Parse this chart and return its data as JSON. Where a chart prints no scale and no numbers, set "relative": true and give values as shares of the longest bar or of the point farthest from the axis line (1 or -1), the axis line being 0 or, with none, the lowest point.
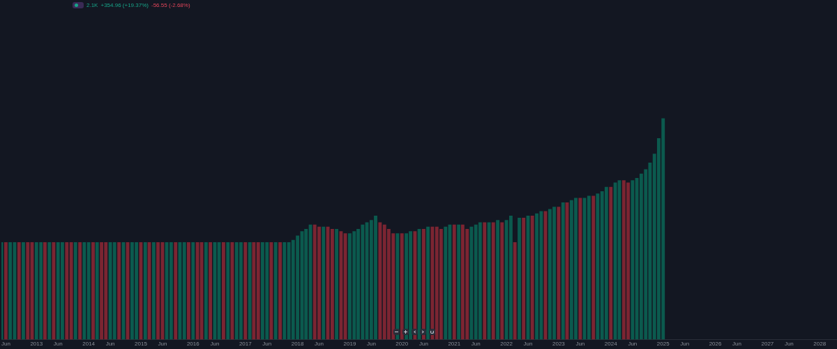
{
  "chart_data": {
    "type": "bar",
    "relative": true,
    "legend": false,
    "tick_labels": "x",
    "annotations": [
      "2.1K",
      "+354.96 (+19.37%)",
      "-56.55 (-2.68%)"
    ],
    "xlim": [
      "2012-05",
      "2028-05"
    ],
    "xticks": [
      {
        "value": "2012-06",
        "label": "Jun"
      },
      "2013",
      {
        "value": "2013-06",
        "label": "Jun"
      },
      "2014",
      {
        "value": "2014-06",
        "label": "Jun"
      },
      "2015",
      {
        "value": "2015-06",
        "label": "Jun"
      },
      "2016",
      {
        "value": "2016-06",
        "label": "Jun"
      },
      "2017",
      {
        "value": "2017-06",
        "label": "Jun"
      },
      "2018",
      {
        "value": "2018-06",
        "label": "Jun"
      },
      "2019",
      {
        "value": "2019-06",
        "label": "Jun"
      },
      "2020",
      {
        "value": "2020-06",
        "label": "Jun"
      },
      "2021",
      {
        "value": "2021-06",
        "label": "Jun"
      },
      "2022",
      {
        "value": "2022-06",
        "label": "Jun"
      },
      "2023",
      {
        "value": "2023-06",
        "label": "Jun"
      },
      "2024",
      {
        "value": "2024-06",
        "label": "Jun"
      },
      "2025",
      {
        "value": "2025-06",
        "label": "Jun"
      },
      "2026",
      {
        "value": "2026-06",
        "label": "Jun"
      },
      "2027",
      {
        "value": "2027-06",
        "label": "Jun"
      },
      "2028"
    ],
    "x": [
      "2012-05",
      "2012-06",
      "2012-07",
      "2012-08",
      "2012-09",
      "2012-10",
      "2012-11",
      "2012-12",
      "2013-01",
      "2013-02",
      "2013-03",
      "2013-04",
      "2013-05",
      "2013-06",
      "2013-07",
      "2013-08",
      "2013-09",
      "2013-10",
      "2013-11",
      "2013-12",
      "2014-01",
      "2014-02",
      "2014-03",
      "2014-04",
      "2014-05",
      "2014-06",
      "2014-07",
      "2014-08",
      "2014-09",
      "2014-10",
      "2014-11",
      "2014-12",
      "2015-01",
      "2015-02",
      "2015-03",
      "2015-04",
      "2015-05",
      "2015-06",
      "2015-07",
      "2015-08",
      "2015-09",
      "2015-10",
      "2015-11",
      "2015-12",
      "2016-01",
      "2016-02",
      "2016-03",
      "2016-04",
      "2016-05",
      "2016-06",
      "2016-07",
      "2016-08",
      "2016-09",
      "2016-10",
      "2016-11",
      "2016-12",
      "2017-01",
      "2017-02",
      "2017-03",
      "2017-04",
      "2017-05",
      "2017-06",
      "2017-07",
      "2017-08",
      "2017-09",
      "2017-10",
      "2017-11",
      "2017-12",
      "2018-01",
      "2018-02",
      "2018-03",
      "2018-04",
      "2018-05",
      "2018-06",
      "2018-07",
      "2018-08",
      "2018-09",
      "2018-10",
      "2018-11",
      "2018-12",
      "2019-01",
      "2019-02",
      "2019-03",
      "2019-04",
      "2019-05",
      "2019-06",
      "2019-07",
      "2019-08",
      "2019-09",
      "2019-10",
      "2019-11",
      "2019-12",
      "2020-01",
      "2020-02",
      "2020-03",
      "2020-04",
      "2020-05",
      "2020-06",
      "2020-07",
      "2020-08",
      "2020-09",
      "2020-10",
      "2020-11",
      "2020-12",
      "2021-01",
      "2021-02",
      "2021-03",
      "2021-04",
      "2021-05",
      "2021-06",
      "2021-07",
      "2021-08",
      "2021-09",
      "2021-10",
      "2021-11",
      "2021-12",
      "2022-01",
      "2022-02",
      "2022-03",
      "2022-04",
      "2022-05",
      "2022-06",
      "2022-07",
      "2022-08",
      "2022-09",
      "2022-10",
      "2022-11",
      "2022-12",
      "2023-01",
      "2023-02",
      "2023-03",
      "2023-04",
      "2023-05",
      "2023-06",
      "2023-07",
      "2023-08",
      "2023-09",
      "2023-10",
      "2023-11",
      "2023-12",
      "2024-01",
      "2024-02",
      "2024-03",
      "2024-04",
      "2024-05",
      "2024-06",
      "2024-07",
      "2024-08",
      "2024-09",
      "2024-10",
      "2024-11",
      "2024-12",
      "2025-01"
    ],
    "values": [
      0.44,
      0.44,
      0.44,
      0.44,
      0.44,
      0.44,
      0.44,
      0.44,
      0.44,
      0.44,
      0.44,
      0.44,
      0.44,
      0.44,
      0.44,
      0.44,
      0.44,
      0.44,
      0.44,
      0.44,
      0.44,
      0.44,
      0.44,
      0.44,
      0.44,
      0.44,
      0.44,
      0.44,
      0.44,
      0.44,
      0.44,
      0.44,
      0.44,
      0.44,
      0.44,
      0.44,
      0.44,
      0.44,
      0.44,
      0.44,
      0.44,
      0.44,
      0.44,
      0.44,
      0.44,
      0.44,
      0.44,
      0.44,
      0.44,
      0.44,
      0.44,
      0.44,
      0.44,
      0.44,
      0.44,
      0.44,
      0.44,
      0.44,
      0.44,
      0.44,
      0.44,
      0.44,
      0.44,
      0.44,
      0.44,
      0.44,
      0.44,
      0.45,
      0.47,
      0.49,
      0.5,
      0.52,
      0.52,
      0.51,
      0.51,
      0.51,
      0.5,
      0.5,
      0.49,
      0.48,
      0.48,
      0.49,
      0.5,
      0.52,
      0.53,
      0.54,
      0.56,
      0.53,
      0.52,
      0.5,
      0.48,
      0.48,
      0.48,
      0.48,
      0.49,
      0.49,
      0.5,
      0.5,
      0.51,
      0.51,
      0.51,
      0.5,
      0.51,
      0.52,
      0.52,
      0.52,
      0.52,
      0.5,
      0.51,
      0.52,
      0.53,
      0.53,
      0.53,
      0.53,
      0.54,
      0.53,
      0.54,
      0.56,
      0.44,
      0.55,
      0.55,
      0.56,
      0.56,
      0.57,
      0.58,
      0.58,
      0.59,
      0.6,
      0.6,
      0.62,
      0.62,
      0.63,
      0.64,
      0.64,
      0.64,
      0.65,
      0.65,
      0.66,
      0.67,
      0.69,
      0.69,
      0.71,
      0.72,
      0.72,
      0.71,
      0.72,
      0.73,
      0.75,
      0.77,
      0.8,
      0.84,
      0.91,
      1
    ],
    "colors": [
      "#0b5a4e",
      "#7b2532",
      "#0b5a4e",
      "#0b5a4e",
      "#7b2532",
      "#0b5a4e",
      "#7b2532",
      "#7b2532",
      "#0b5a4e",
      "#0b5a4e",
      "#7b2532",
      "#0b5a4e",
      "#7b2532",
      "#0b5a4e",
      "#0b5a4e",
      "#7b2532",
      "#7b2532",
      "#0b5a4e",
      "#7b2532",
      "#0b5a4e",
      "#0b5a4e",
      "#7b2532",
      "#0b5a4e",
      "#7b2532",
      "#7b2532",
      "#0b5a4e",
      "#0b5a4e",
      "#7b2532",
      "#0b5a4e",
      "#7b2532",
      "#0b5a4e",
      "#0b5a4e",
      "#7b2532",
      "#0b5a4e",
      "#7b2532",
      "#0b5a4e",
      "#7b2532",
      "#7b2532",
      "#0b5a4e",
      "#0b5a4e",
      "#7b2532",
      "#0b5a4e",
      "#0b5a4e",
      "#7b2532",
      "#0b5a4e",
      "#7b2532",
      "#7b2532",
      "#0b5a4e",
      "#7b2532",
      "#0b5a4e",
      "#0b5a4e",
      "#7b2532",
      "#0b5a4e",
      "#7b2532",
      "#0b5a4e",
      "#0b5a4e",
      "#7b2532",
      "#0b5a4e",
      "#7b2532",
      "#7b2532",
      "#0b5a4e",
      "#0b5a4e",
      "#7b2532",
      "#0b5a4e",
      "#7b2532",
      "#0b5a4e",
      "#0b5a4e",
      "#0b5a4e",
      "#0b5a4e",
      "#0b5a4e",
      "#0b5a4e",
      "#0b5a4e",
      "#7b2532",
      "#7b2532",
      "#0b5a4e",
      "#7b2532",
      "#7b2532",
      "#0b5a4e",
      "#7b2532",
      "#7b2532",
      "#0b5a4e",
      "#0b5a4e",
      "#0b5a4e",
      "#0b5a4e",
      "#0b5a4e",
      "#0b5a4e",
      "#0b5a4e",
      "#7b2532",
      "#7b2532",
      "#7b2532",
      "#7b2532",
      "#0b5a4e",
      "#7b2532",
      "#0b5a4e",
      "#0b5a4e",
      "#7b2532",
      "#0b5a4e",
      "#7b2532",
      "#0b5a4e",
      "#7b2532",
      "#7b2532",
      "#7b2532",
      "#0b5a4e",
      "#0b5a4e",
      "#7b2532",
      "#0b5a4e",
      "#7b2532",
      "#7b2532",
      "#0b5a4e",
      "#0b5a4e",
      "#0b5a4e",
      "#7b2532",
      "#0b5a4e",
      "#7b2532",
      "#0b5a4e",
      "#7b2532",
      "#0b5a4e",
      "#0b5a4e",
      "#7b2532",
      "#0b5a4e",
      "#7b2532",
      "#0b5a4e",
      "#7b2532",
      "#0b5a4e",
      "#0b5a4e",
      "#7b2532",
      "#0b5a4e",
      "#0b5a4e",
      "#7b2532",
      "#0b5a4e",
      "#7b2532",
      "#0b5a4e",
      "#0b5a4e",
      "#7b2532",
      "#0b5a4e",
      "#0b5a4e",
      "#7b2532",
      "#0b5a4e",
      "#0b5a4e",
      "#0b5a4e",
      "#7b2532",
      "#0b5a4e",
      "#0b5a4e",
      "#7b2532",
      "#7b2532",
      "#0b5a4e",
      "#0b5a4e",
      "#0b5a4e",
      "#0b5a4e",
      "#0b5a4e",
      "#0b5a4e",
      "#0b5a4e",
      "#0b5a4e"
    ]
  }
}
